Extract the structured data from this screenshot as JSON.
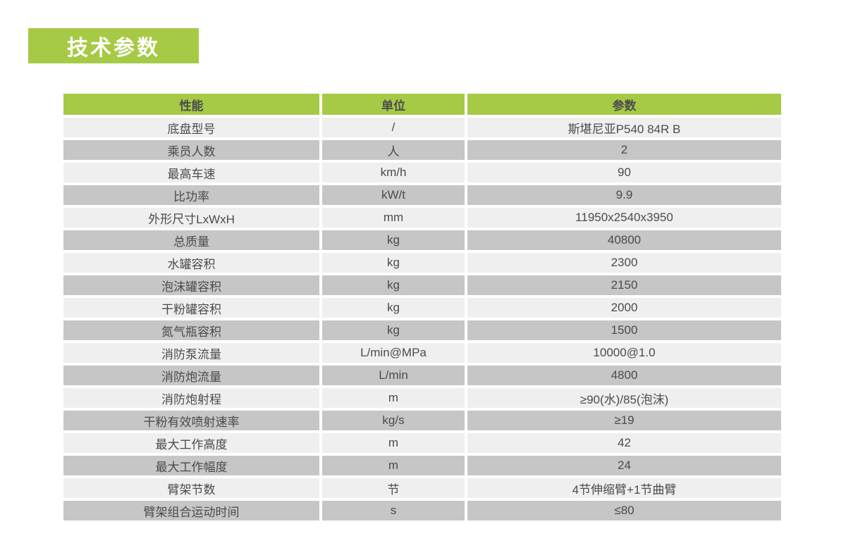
{
  "page_title": "技术参数",
  "colors": {
    "accent_green": "#a6ca45",
    "row_light": "#efefef",
    "row_dark": "#c6c6c6",
    "header_text": "#4b4c4e",
    "body_text": "#4a4b4d",
    "title_text": "#ffffff"
  },
  "table": {
    "headers": [
      "性能",
      "单位",
      "参数"
    ],
    "rows": [
      {
        "performance": "底盘型号",
        "unit": "/",
        "value": "斯堪尼亚P540 84R B"
      },
      {
        "performance": "乘员人数",
        "unit": "人",
        "value": "2"
      },
      {
        "performance": "最高车速",
        "unit": "km/h",
        "value": "90"
      },
      {
        "performance": "比功率",
        "unit": "kW/t",
        "value": "9.9"
      },
      {
        "performance": "外形尺寸LxWxH",
        "unit": "mm",
        "value": "11950x2540x3950"
      },
      {
        "performance": "总质量",
        "unit": "kg",
        "value": "40800"
      },
      {
        "performance": "水罐容积",
        "unit": "kg",
        "value": "2300"
      },
      {
        "performance": "泡沫罐容积",
        "unit": "kg",
        "value": "2150"
      },
      {
        "performance": "干粉罐容积",
        "unit": "kg",
        "value": "2000"
      },
      {
        "performance": "氮气瓶容积",
        "unit": "kg",
        "value": "1500"
      },
      {
        "performance": "消防泵流量",
        "unit": "L/min@MPa",
        "value": "10000@1.0"
      },
      {
        "performance": "消防炮流量",
        "unit": "L/min",
        "value": "4800"
      },
      {
        "performance": "消防炮射程",
        "unit": "m",
        "value": "≥90(水)/85(泡沫)"
      },
      {
        "performance": "干粉有效喷射速率",
        "unit": "kg/s",
        "value": "≥19"
      },
      {
        "performance": "最大工作高度",
        "unit": "m",
        "value": "42"
      },
      {
        "performance": "最大工作幅度",
        "unit": "m",
        "value": "24"
      },
      {
        "performance": "臂架节数",
        "unit": "节",
        "value": "4节伸缩臂+1节曲臂"
      },
      {
        "performance": "臂架组合运动时间",
        "unit": "s",
        "value": "≤80"
      }
    ]
  }
}
